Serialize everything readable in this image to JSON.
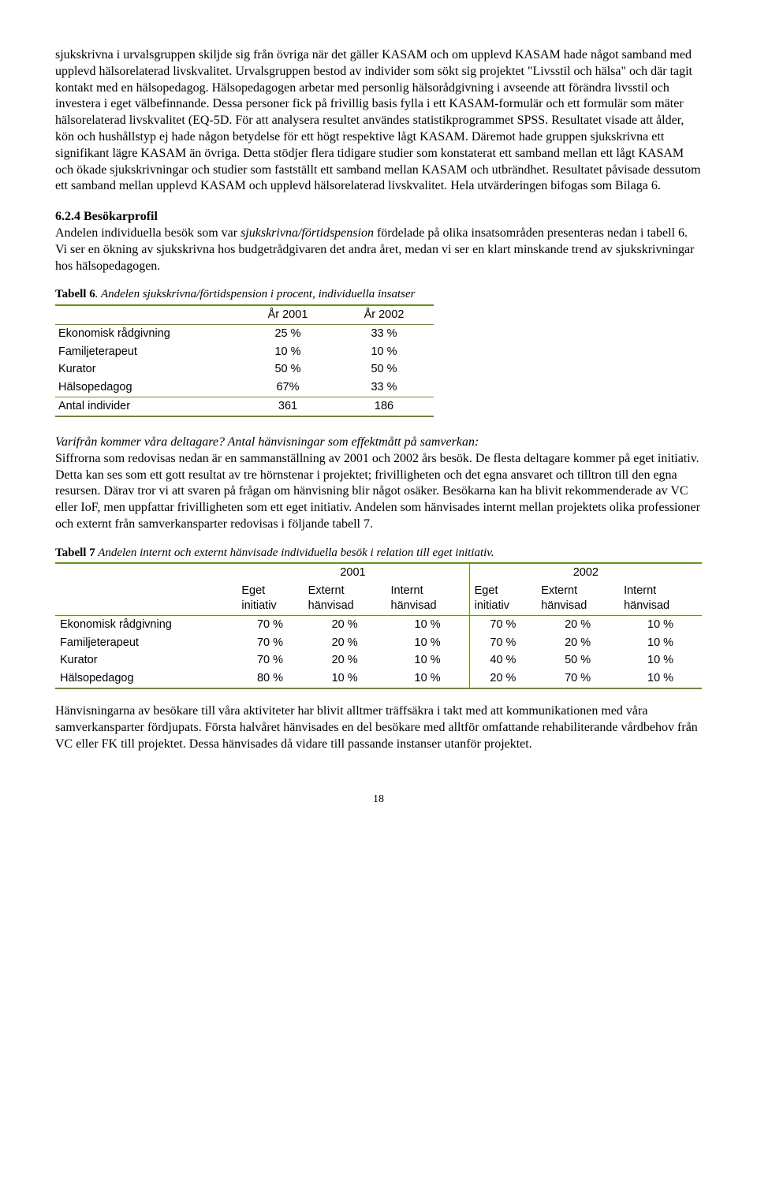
{
  "para1": "sjukskrivna i urvalsgruppen skiljde sig från övriga när det gäller KASAM och om upplevd KASAM hade något samband med upplevd hälsorelaterad livskvalitet. Urvalsgruppen bestod av individer som sökt sig projektet \"Livsstil och hälsa\" och där tagit kontakt med en hälsopedagog. Hälsopedagogen arbetar med personlig hälsorådgivning i avseende att förändra livsstil och investera i eget välbefinnande. Dessa personer fick på frivillig basis fylla i ett KASAM-formulär och ett formulär som mäter hälsorelaterad livskvalitet (EQ-5D. För att analysera resultet användes statistikprogrammet SPSS. Resultatet visade att ålder, kön och hushållstyp ej hade någon betydelse för ett högt respektive lågt KASAM. Däremot hade gruppen sjukskrivna ett signifikant lägre KASAM än övriga. Detta stödjer flera tidigare studier som konstaterat ett samband mellan ett lågt KASAM och ökade sjukskrivningar och studier som fastställt ett samband mellan KASAM och utbrändhet. Resultatet påvisade dessutom ett samband mellan upplevd KASAM och upplevd hälsorelaterad livskvalitet. Hela utvärderingen bifogas som Bilaga 6.",
  "heading624": "6.2.4 Besökarprofil",
  "para2a": "Andelen individuella besök som var ",
  "para2i": "sjukskrivna/förtidspension",
  "para2b": " fördelade på olika insatsområden presenteras nedan i tabell 6. Vi ser en ökning av sjukskrivna hos budgetrådgivaren det andra året, medan vi ser en klart minskande trend av sjukskrivningar hos hälsopedagogen.",
  "table6_caption_bold": "Tabell 6",
  "table6_caption_rest": ". Andelen sjukskrivna/förtidspension i procent, individuella insatser",
  "table6": {
    "col_headers": [
      "",
      "År 2001",
      "År 2002"
    ],
    "rows": [
      [
        "Ekonomisk rådgivning",
        "25 %",
        "33 %"
      ],
      [
        "Familjeterapeut",
        "10 %",
        "10 %"
      ],
      [
        "Kurator",
        "50 %",
        "50 %"
      ],
      [
        "Hälsopedagog",
        "67%",
        "33 %"
      ]
    ],
    "last_row": [
      "Antal individer",
      "361",
      "186"
    ]
  },
  "para3i": "Varifrån kommer våra deltagare? Antal hänvisningar som effektmått på samverkan:",
  "para3": "Siffrorna som redovisas nedan är en sammanställning av 2001 och 2002 års besök. De flesta deltagare kommer på eget initiativ. Detta kan ses som ett gott resultat av tre hörnstenar i projektet; frivilligheten och det egna ansvaret och tilltron till den egna resursen. Därav tror vi att svaren på frågan om hänvisning blir något osäker. Besökarna kan ha blivit rekommenderade av VC eller IoF, men uppfattar frivilligheten som ett eget initiativ. Andelen som hänvisades internt mellan projektets olika professioner och externt från samverkansparter redovisas i följande tabell 7.",
  "table7_caption_bold": "Tabell 7",
  "table7_caption_rest": "  Andelen internt och externt hänvisade individuella besök i relation till eget initiativ.",
  "table7": {
    "year1": "2001",
    "year2": "2002",
    "sub_headers": [
      "Eget initiativ",
      "Externt hänvisad",
      "Internt hänvisad",
      "Eget initiativ",
      "Externt hänvisad",
      "Internt hänvisad"
    ],
    "rows": [
      [
        "Ekonomisk rådgivning",
        "70 %",
        "20 %",
        "10 %",
        "70 %",
        "20 %",
        "10 %"
      ],
      [
        "Familjeterapeut",
        "70 %",
        "20 %",
        "10 %",
        "70 %",
        "20 %",
        "10 %"
      ],
      [
        "Kurator",
        "70 %",
        "20 %",
        "10 %",
        "40 %",
        "50 %",
        "10 %"
      ],
      [
        "Hälsopedagog",
        "80 %",
        "10 %",
        "10 %",
        "20 %",
        "70 %",
        "10 %"
      ]
    ]
  },
  "para4": "Hänvisningarna av besökare till våra aktiviteter har blivit alltmer träffsäkra i takt med att kommunikationen med våra samverkansparter fördjupats. Första halvåret hänvisades en del besökare med alltför omfattande rehabiliterande vårdbehov från VC eller FK till projektet. Dessa hänvisades då vidare till passande instanser utanför projektet.",
  "page_number": "18"
}
